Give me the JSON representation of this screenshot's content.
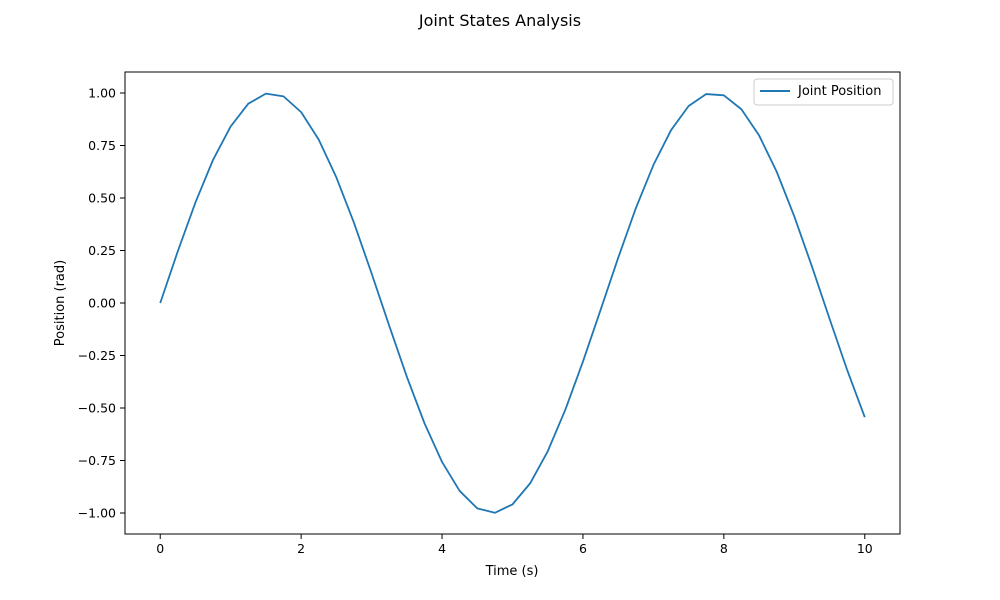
{
  "chart_data": {
    "type": "line",
    "title": "Joint States Analysis",
    "xlabel": "Time (s)",
    "ylabel": "Position (rad)",
    "xlim": [
      -0.5,
      10.5
    ],
    "ylim": [
      -1.1,
      1.1
    ],
    "xticks": [
      0,
      2,
      4,
      6,
      8,
      10
    ],
    "xtick_labels": [
      "0",
      "2",
      "4",
      "6",
      "8",
      "10"
    ],
    "yticks": [
      1.0,
      0.75,
      0.5,
      0.25,
      0.0,
      -0.25,
      -0.5,
      -0.75,
      -1.0
    ],
    "ytick_labels": [
      "1.00",
      "0.75",
      "0.50",
      "0.25",
      "0.00",
      "−0.25",
      "−0.50",
      "−0.75",
      "−1.00"
    ],
    "grid": false,
    "legend_position": "top-right",
    "series": [
      {
        "name": "Joint Position",
        "color": "#1f77b4",
        "x": [
          0,
          0.25,
          0.5,
          0.75,
          1,
          1.25,
          1.5,
          1.75,
          2,
          2.25,
          2.5,
          2.75,
          3,
          3.25,
          3.5,
          3.75,
          4,
          4.25,
          4.5,
          4.75,
          5,
          5.25,
          5.5,
          5.75,
          6,
          6.25,
          6.5,
          6.75,
          7,
          7.25,
          7.5,
          7.75,
          8,
          8.25,
          8.5,
          8.75,
          9,
          9.25,
          9.5,
          9.75,
          10
        ],
        "y": [
          0.0,
          0.247,
          0.479,
          0.682,
          0.841,
          0.949,
          0.997,
          0.984,
          0.909,
          0.778,
          0.598,
          0.382,
          0.141,
          -0.108,
          -0.351,
          -0.572,
          -0.757,
          -0.895,
          -0.978,
          -0.999,
          -0.959,
          -0.859,
          -0.706,
          -0.508,
          -0.279,
          -0.033,
          0.215,
          0.451,
          0.657,
          0.823,
          0.938,
          0.995,
          0.989,
          0.922,
          0.798,
          0.625,
          0.412,
          0.174,
          -0.075,
          -0.319,
          -0.544
        ]
      }
    ]
  }
}
